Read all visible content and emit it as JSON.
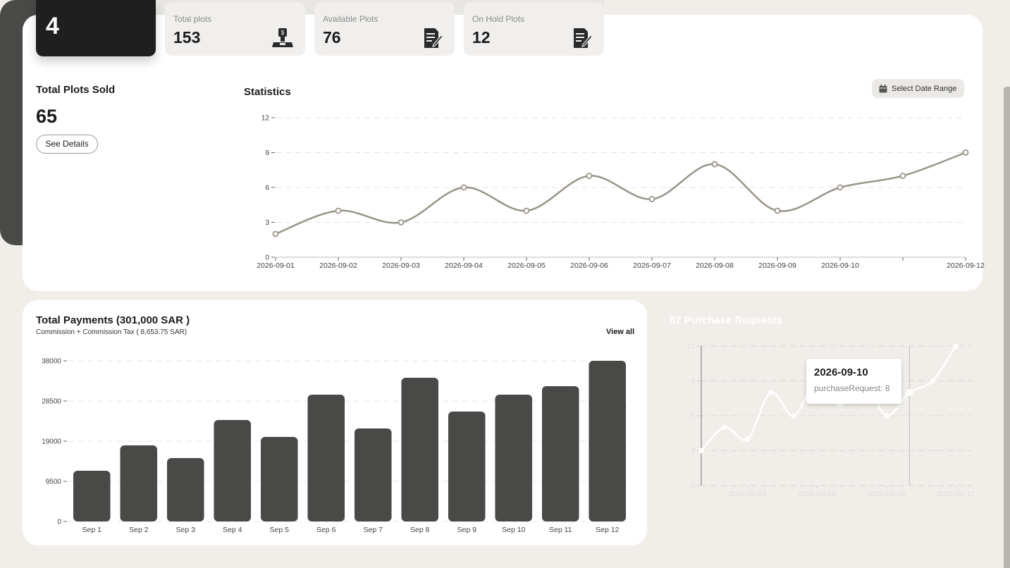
{
  "header": {
    "dark_card_value": "4",
    "cards": [
      {
        "label": "Total plots",
        "value": "153",
        "icon": "stamp-icon"
      },
      {
        "label": "Available Plots",
        "value": "76",
        "icon": "edit-document-icon"
      },
      {
        "label": "On Hold Plots",
        "value": "12",
        "icon": "edit-document-icon"
      }
    ]
  },
  "plots_sold": {
    "title": "Total Plots Sold",
    "value": "65",
    "button": "See Details"
  },
  "statistics": {
    "title": "Statistics",
    "date_range_button": "Select Date Range"
  },
  "payments": {
    "title": "Total Payments (301,000 SAR )",
    "subtitle": "Commission + Commission Tax ( 8,653.75 SAR)",
    "view_all": "View all"
  },
  "requests": {
    "title": "87 Purchase Requests",
    "tooltip_date": "2026-09-10",
    "tooltip_text": "purchaseRequest: 8"
  },
  "colors": {
    "stats_line": "#99948a",
    "bar": "#494947",
    "dark_panel": "#494947"
  },
  "chart_data": [
    {
      "type": "line",
      "title": "Statistics",
      "x": [
        "2026-09-01",
        "2026-09-02",
        "2026-09-03",
        "2026-09-04",
        "2026-09-05",
        "2026-09-06",
        "2026-09-07",
        "2026-09-08",
        "2026-09-09",
        "2026-09-10",
        "2026-09-11",
        "2026-09-12"
      ],
      "x_tick_labels": [
        "2026-09-01",
        "2026-09-02",
        "2026-09-03",
        "2026-09-04",
        "2026-09-05",
        "2026-09-06",
        "2026-09-07",
        "2026-09-08",
        "2026-09-09",
        "2026-09-10",
        "",
        "2026-09-12"
      ],
      "values": [
        2,
        4,
        3,
        6,
        4,
        7,
        5,
        8,
        4,
        6,
        7,
        9
      ],
      "ylim": [
        0,
        12
      ],
      "yticks": [
        "0",
        "3",
        "6",
        "9",
        "12"
      ],
      "grid": true
    },
    {
      "type": "bar",
      "title": "Total Payments (301,000 SAR )",
      "categories": [
        "Sep 1",
        "Sep 2",
        "Sep 3",
        "Sep 4",
        "Sep 5",
        "Sep 6",
        "Sep 7",
        "Sep 8",
        "Sep 9",
        "Sep 10",
        "Sep 11",
        "Sep 12"
      ],
      "values": [
        12000,
        18000,
        15000,
        24000,
        20000,
        30000,
        22000,
        34000,
        26000,
        30000,
        32000,
        38000
      ],
      "ylim": [
        0,
        38000
      ],
      "yticks": [
        "0",
        "9500",
        "19000",
        "28500",
        "38000"
      ],
      "grid": true
    },
    {
      "type": "line",
      "title": "87 Purchase Requests",
      "x": [
        "2026-09-01",
        "2026-09-02",
        "2026-09-03",
        "2026-09-04",
        "2026-09-05",
        "2026-09-06",
        "2026-09-07",
        "2026-09-08",
        "2026-09-09",
        "2026-09-10",
        "2026-09-11",
        "2026-09-12"
      ],
      "x_tick_labels": [
        "",
        "",
        "2026-09-03",
        "",
        "",
        "2026-09-06",
        "",
        "",
        "2026-09-09",
        "",
        "",
        "2026-09-12"
      ],
      "values": [
        3,
        5,
        4,
        8,
        6,
        9,
        7,
        9,
        6,
        8,
        9,
        12
      ],
      "ylim": [
        0,
        12
      ],
      "yticks": [
        "0",
        "3",
        "6",
        "9",
        "12"
      ],
      "grid": true,
      "active_index": 9
    }
  ]
}
